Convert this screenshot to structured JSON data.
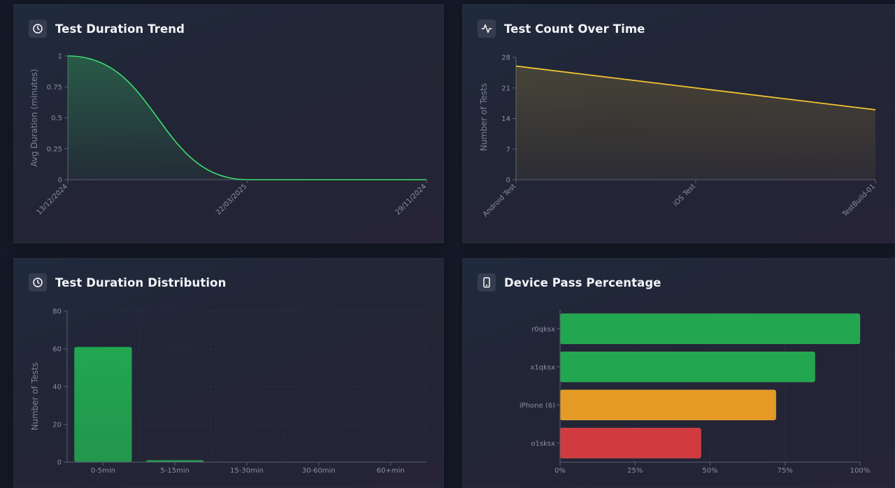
{
  "cards": {
    "duration_trend": {
      "title": "Test Duration Trend",
      "icon": "clock-icon"
    },
    "count_time": {
      "title": "Test Count Over Time",
      "icon": "activity-icon"
    },
    "distribution": {
      "title": "Test Duration Distribution",
      "icon": "clock-icon"
    },
    "pass_pct": {
      "title": "Device Pass Percentage",
      "icon": "smartphone-icon"
    }
  },
  "colors": {
    "green": "#3ddc6e",
    "yellow": "#f2c531",
    "bar_green": "#22a650",
    "bar_orange": "#e49a25",
    "bar_red": "#d13b3f",
    "grid": "#2c3245",
    "axis": "#5a6075"
  },
  "chart_data": [
    {
      "id": "duration_trend",
      "type": "area",
      "title": "Test Duration Trend",
      "xlabel": "",
      "ylabel": "Avg Duration (minutes)",
      "categories": [
        "13/12/2024",
        "22/03/2025",
        "29/11/2024"
      ],
      "values": [
        1,
        0,
        0
      ],
      "yticks": [
        "0",
        "0.25",
        "0.5",
        "0.75",
        "1"
      ],
      "ylim": [
        0,
        1
      ]
    },
    {
      "id": "count_time",
      "type": "area",
      "title": "Test Count Over Time",
      "xlabel": "",
      "ylabel": "Number of Tests",
      "categories": [
        "Android Test",
        "iOS Test",
        "TestBuild-01"
      ],
      "values": [
        26,
        21,
        16
      ],
      "yticks": [
        "0",
        "7",
        "14",
        "21",
        "28"
      ],
      "ylim": [
        0,
        28
      ]
    },
    {
      "id": "distribution",
      "type": "bar",
      "title": "Test Duration Distribution",
      "xlabel": "",
      "ylabel": "Number of Tests",
      "categories": [
        "0-5min",
        "5-15min",
        "15-30min",
        "30-60min",
        "60+min"
      ],
      "values": [
        61,
        1,
        0,
        0,
        0
      ],
      "yticks": [
        "0",
        "20",
        "40",
        "60",
        "80"
      ],
      "ylim": [
        0,
        80
      ]
    },
    {
      "id": "pass_pct",
      "type": "bar",
      "orientation": "horizontal",
      "title": "Device Pass Percentage",
      "xlabel": "",
      "ylabel": "",
      "categories": [
        "r0qksx",
        "x1qksx",
        "iPhone (6)",
        "o1sksx"
      ],
      "values": [
        100,
        85,
        72,
        47
      ],
      "xticks": [
        "0%",
        "25%",
        "50%",
        "75%",
        "100%"
      ],
      "xlim": [
        0,
        100
      ]
    }
  ]
}
